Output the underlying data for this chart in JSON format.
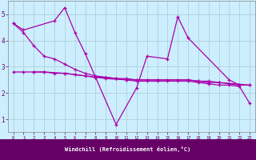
{
  "xlabel": "Windchill (Refroidissement éolien,°C)",
  "background_color": "#cceeff",
  "grid_color": "#aacccc",
  "line_color": "#aa00aa",
  "x": [
    0,
    1,
    2,
    3,
    4,
    5,
    6,
    7,
    8,
    9,
    10,
    11,
    12,
    13,
    14,
    15,
    16,
    17,
    18,
    19,
    20,
    21,
    22,
    23
  ],
  "series1_x": [
    0,
    1,
    4,
    5,
    6,
    7,
    10,
    12,
    13,
    15,
    16,
    17,
    21,
    22
  ],
  "series1_y": [
    4.65,
    4.4,
    4.75,
    5.25,
    4.3,
    3.5,
    0.8,
    2.2,
    3.4,
    3.3,
    4.9,
    4.1,
    2.5,
    2.3
  ],
  "series2_x": [
    2,
    3,
    5,
    6,
    8,
    9,
    11,
    12,
    14,
    17,
    18,
    19,
    20,
    23
  ],
  "series2_y": [
    2.8,
    2.8,
    2.75,
    2.7,
    2.6,
    2.55,
    2.5,
    2.5,
    2.5,
    2.5,
    2.45,
    2.4,
    2.4,
    2.3
  ],
  "series3_x": [
    0,
    1,
    2,
    3,
    4,
    5,
    6,
    7,
    8,
    9,
    10,
    11,
    12,
    13,
    14,
    15,
    16,
    17,
    18,
    19,
    20,
    21,
    22,
    23
  ],
  "series3_y": [
    2.8,
    2.8,
    2.8,
    2.8,
    2.75,
    2.75,
    2.7,
    2.65,
    2.6,
    2.6,
    2.55,
    2.55,
    2.5,
    2.5,
    2.5,
    2.5,
    2.5,
    2.5,
    2.45,
    2.45,
    2.4,
    2.35,
    2.3,
    2.3
  ],
  "series4_x": [
    0,
    1,
    2,
    3,
    4,
    5,
    6,
    7,
    8,
    9,
    10,
    11,
    12,
    13,
    14,
    15,
    16,
    17,
    18,
    19,
    20,
    21,
    22,
    23
  ],
  "series4_y": [
    4.65,
    4.3,
    3.8,
    3.4,
    3.3,
    3.1,
    2.9,
    2.75,
    2.65,
    2.6,
    2.55,
    2.5,
    2.45,
    2.45,
    2.45,
    2.45,
    2.45,
    2.45,
    2.4,
    2.35,
    2.3,
    2.3,
    2.25,
    1.6
  ],
  "ylim": [
    0.5,
    5.5
  ],
  "yticks": [
    1,
    2,
    3,
    4,
    5
  ],
  "xlim": [
    -0.5,
    23.5
  ],
  "xlabel_bg": "#660066",
  "xlabel_fg": "#ffffff",
  "tick_color": "#660066",
  "spine_color": "#888888"
}
